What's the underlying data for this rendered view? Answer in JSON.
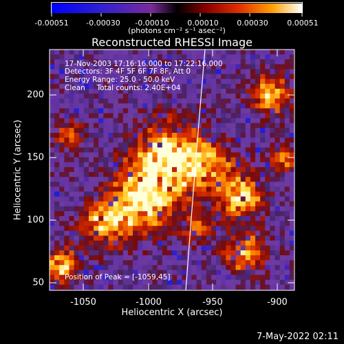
{
  "colorbar": {
    "tick_labels": [
      "-0.00051",
      "-0.00030",
      "-0.00010",
      "0.00010",
      "0.00030",
      "0.00051"
    ],
    "units": "(photons cm⁻² s⁻¹ asec⁻²)"
  },
  "title": "Reconstructed RHESSI Image",
  "overlay": {
    "line1": "17-Nov-2003 17:16:16.000 to 17:22:16.000",
    "line2": "Detectors: 3F 4F 5F 6F 7F 8F, Att 0",
    "line3": "Energy Range: 25.0 - 50.0 keV",
    "line4": "Clean     Total counts: 2.40E+04",
    "peak": "Position of Peak = [-1059,45]"
  },
  "axes": {
    "xlabel": "Heliocentric X (arcsec)",
    "ylabel": "Heliocentric Y (arcsec)",
    "xticks": [
      "-1050",
      "-1000",
      "-950",
      "-900"
    ],
    "yticks": [
      "200",
      "150",
      "100",
      "50"
    ]
  },
  "timestamp": "7-May-2022 02:11",
  "colors": {
    "background": "#000000",
    "limb_line": "#ffffff"
  }
}
